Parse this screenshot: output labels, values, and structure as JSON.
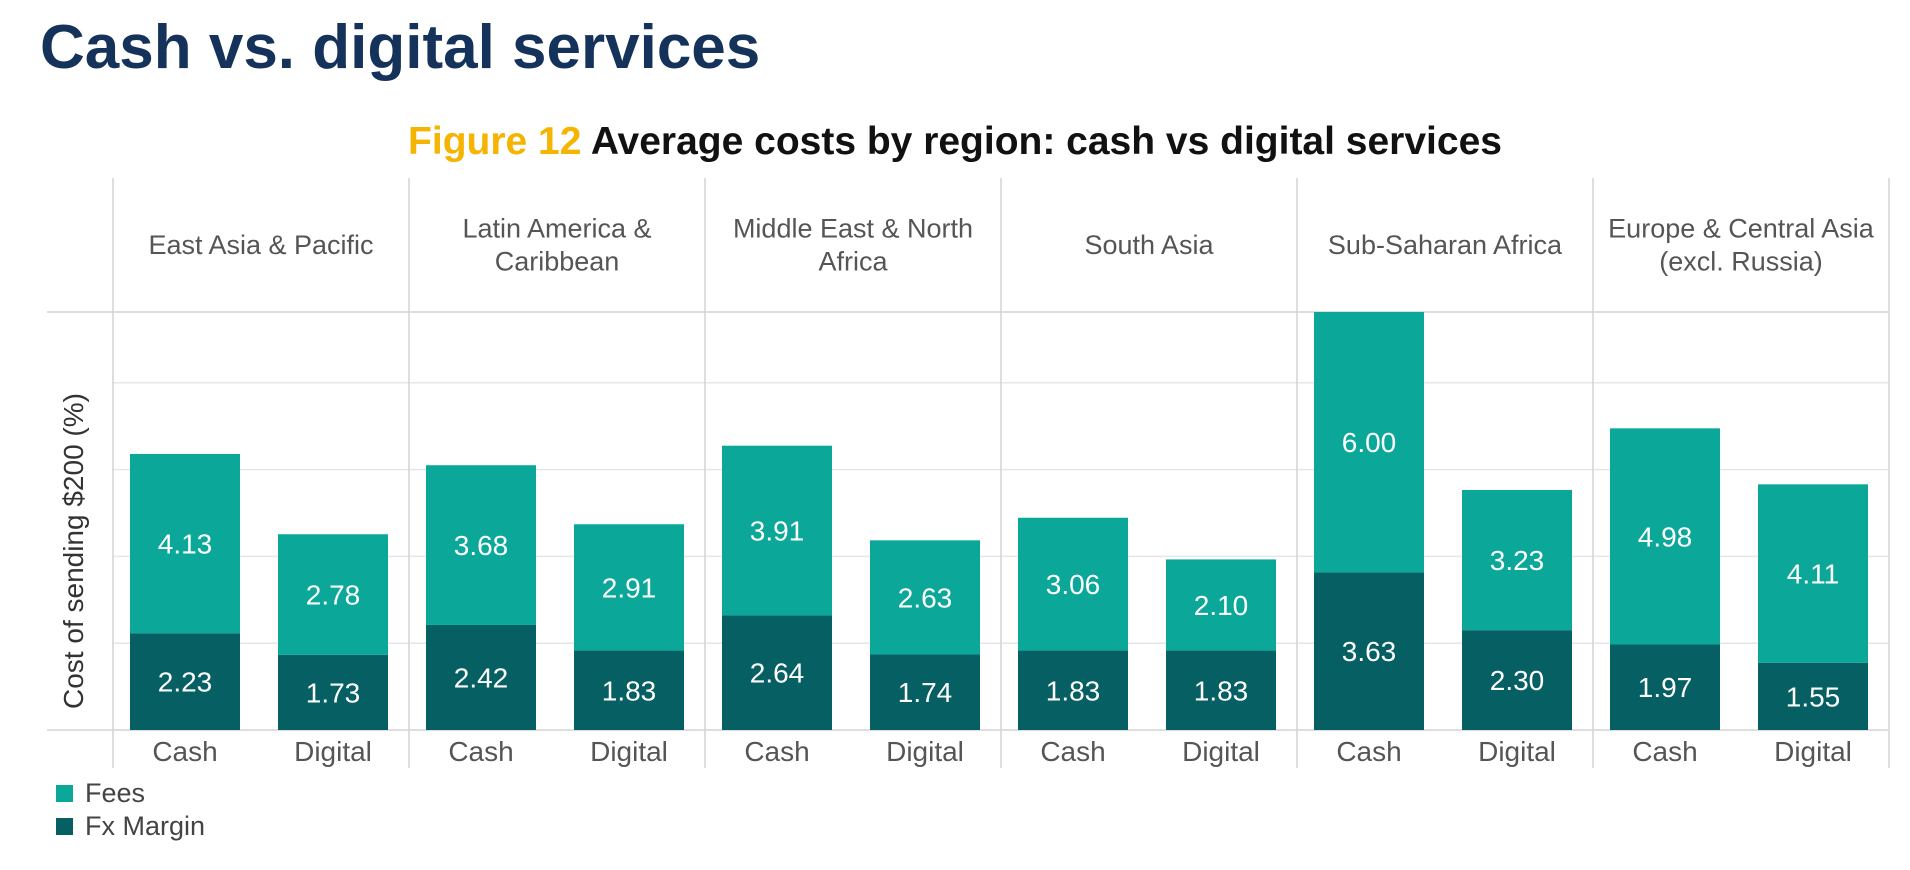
{
  "page": {
    "title": "Cash vs. digital services"
  },
  "figure": {
    "label": "Figure 12",
    "title": "Average costs by region: cash vs digital services"
  },
  "colors": {
    "fees": "#0ba89a",
    "fx_margin": "#066063"
  },
  "chart_data": {
    "type": "bar",
    "stacked": true,
    "ylabel": "Cost of sending $200 (%)",
    "ylim": [
      0,
      9.63
    ],
    "grid": true,
    "legend_position": "bottom-left",
    "regions": [
      "East Asia & Pacific",
      "Latin America & Caribbean",
      "Middle East & North Africa",
      "South Asia",
      "Sub-Saharan Africa",
      "Europe & Central Asia (excl. Russia)"
    ],
    "categories": [
      "Cash",
      "Digital"
    ],
    "series": [
      {
        "name": "Fx Margin",
        "values": [
          [
            2.23,
            1.73
          ],
          [
            2.42,
            1.83
          ],
          [
            2.64,
            1.74
          ],
          [
            1.83,
            1.83
          ],
          [
            3.63,
            2.3
          ],
          [
            1.97,
            1.55
          ]
        ]
      },
      {
        "name": "Fees",
        "values": [
          [
            4.13,
            2.78
          ],
          [
            3.68,
            2.91
          ],
          [
            3.91,
            2.63
          ],
          [
            3.06,
            2.1
          ],
          [
            6.0,
            3.23
          ],
          [
            4.98,
            4.11
          ]
        ]
      }
    ]
  }
}
